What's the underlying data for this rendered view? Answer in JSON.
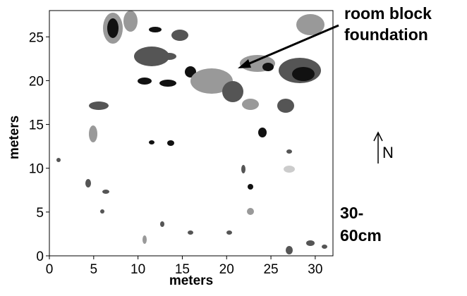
{
  "chart_data": {
    "type": "image-map",
    "xlabel": "meters",
    "ylabel": "meters",
    "xlim": [
      0,
      32
    ],
    "ylim": [
      0,
      28
    ],
    "xticks": [
      0,
      5,
      10,
      15,
      20,
      25,
      30
    ],
    "yticks": [
      0,
      5,
      10,
      15,
      20,
      25
    ],
    "annotation": [
      "room block",
      "foundation"
    ],
    "north_label": "N",
    "depth_label": [
      "30-",
      "60cm"
    ]
  }
}
